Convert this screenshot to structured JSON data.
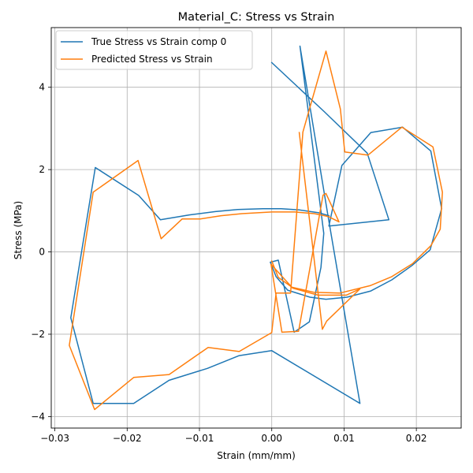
{
  "chart_data": {
    "type": "line",
    "title": "Material_C: Stress vs Strain",
    "xlabel": "Strain (mm/mm)",
    "ylabel": "Stress (MPa)",
    "xlim": [
      -0.0305,
      0.0262
    ],
    "ylim": [
      -4.28,
      5.45
    ],
    "xticks": [
      -0.03,
      -0.02,
      -0.01,
      0.0,
      0.01,
      0.02
    ],
    "xtick_labels": [
      "−0.03",
      "−0.02",
      "−0.01",
      "0.00",
      "0.01",
      "0.02"
    ],
    "yticks": [
      -4,
      -2,
      0,
      2,
      4
    ],
    "ytick_labels": [
      "−4",
      "−2",
      "0",
      "2",
      "4"
    ],
    "grid": true,
    "legend_position": "top-left",
    "series": [
      {
        "name": "True Stress vs Strain comp 0",
        "color": "#1f77b4",
        "x": [
          0.0,
          0.0073,
          0.0132,
          0.0162,
          0.0079,
          0.0097,
          0.0137,
          0.0181,
          0.022,
          0.0235,
          0.0219,
          0.0194,
          0.0166,
          0.0137,
          0.0104,
          0.0075,
          0.0053,
          0.0022,
          0.0006,
          -0.0002,
          0.0009,
          0.0031,
          0.0052,
          0.0068,
          0.0072,
          0.0039,
          0.0078,
          0.0122,
          0.0,
          -0.0045,
          -0.0089,
          -0.0142,
          -0.0191,
          -0.0247,
          -0.0278,
          -0.0244,
          -0.0184,
          -0.0154,
          -0.0114,
          -0.0078,
          -0.0047,
          -0.0012,
          0.0013,
          0.0038,
          0.0065,
          0.0079
        ],
        "y": [
          4.6,
          3.4,
          2.4,
          0.78,
          0.63,
          2.1,
          2.9,
          3.03,
          2.45,
          1.05,
          0.05,
          -0.33,
          -0.68,
          -0.95,
          -1.1,
          -1.15,
          -1.1,
          -0.93,
          -0.6,
          -0.25,
          -0.2,
          -1.95,
          -1.7,
          -0.38,
          0.45,
          5.0,
          0.85,
          -3.68,
          -2.4,
          -2.52,
          -2.83,
          -3.12,
          -3.68,
          -3.68,
          -1.6,
          2.05,
          1.37,
          0.78,
          0.9,
          0.98,
          1.03,
          1.05,
          1.05,
          1.02,
          0.95,
          0.88
        ]
      },
      {
        "name": "Predicted Stress vs Strain",
        "color": "#ff7f0e",
        "x": [
          0.0,
          0.0009,
          0.0028,
          0.0058,
          0.0094,
          0.0136,
          0.0166,
          0.0195,
          0.022,
          0.0233,
          0.0236,
          0.0223,
          0.018,
          0.0133,
          0.0101,
          0.0095,
          0.0075,
          0.0043,
          0.0026,
          0.0006,
          0.0,
          -0.0045,
          -0.0088,
          -0.0142,
          -0.0191,
          -0.0245,
          -0.028,
          -0.0247,
          -0.0185,
          -0.0153,
          -0.0124,
          -0.0099,
          -0.007,
          -0.0041,
          0.0,
          0.0032,
          0.0059,
          0.0078,
          0.0093,
          0.0075,
          0.0071,
          0.0037,
          0.0014,
          -0.0001,
          0.0029,
          0.0064,
          0.0103,
          0.0122,
          0.0076,
          0.007,
          0.0038
        ],
        "y": [
          -0.22,
          -0.62,
          -0.86,
          -0.98,
          -1.0,
          -0.82,
          -0.6,
          -0.28,
          0.15,
          0.55,
          1.45,
          2.55,
          3.03,
          2.35,
          2.43,
          3.47,
          4.88,
          2.91,
          -1.0,
          -1.0,
          -1.96,
          -2.42,
          -2.32,
          -2.98,
          -3.05,
          -3.83,
          -2.27,
          1.45,
          2.22,
          0.32,
          0.8,
          0.8,
          0.88,
          0.93,
          0.97,
          0.97,
          0.93,
          0.86,
          0.73,
          1.42,
          1.38,
          -1.93,
          -1.95,
          -0.3,
          -0.88,
          -1.05,
          -1.05,
          -0.9,
          -1.68,
          -1.88,
          2.9
        ]
      }
    ]
  }
}
